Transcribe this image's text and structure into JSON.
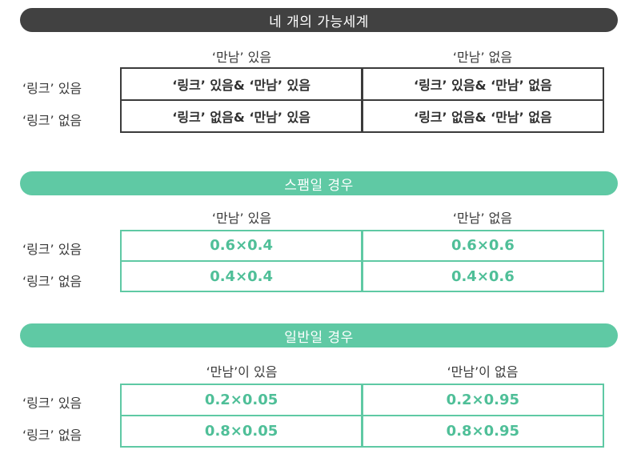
{
  "sections": [
    {
      "title": "네 개의 가능세계",
      "col_headers": [
        "‘만남’ 있음",
        "‘만남’ 없음"
      ],
      "row_headers": [
        "‘링크’ 있음",
        "‘링크’ 없음"
      ],
      "cells": [
        [
          "‘링크’ 있음& ‘만남’ 있음",
          "‘링크’ 있음& ‘만남’ 없음"
        ],
        [
          "‘링크’ 없음& ‘만남’ 있음",
          "‘링크’ 없음& ‘만남’ 없음"
        ]
      ]
    },
    {
      "title": "스팸일 경우",
      "col_headers": [
        "‘만남’ 있음",
        "‘만남’ 없음"
      ],
      "row_headers": [
        "‘링크’ 있음",
        "‘링크’ 없음"
      ],
      "cells": [
        [
          "0.6×0.4",
          "0.6×0.6"
        ],
        [
          "0.4×0.4",
          "0.4×0.6"
        ]
      ]
    },
    {
      "title": "일반일 경우",
      "col_headers": [
        "‘만남’이 있음",
        "‘만남’이 없음"
      ],
      "row_headers": [
        "‘링크’ 있음",
        "‘링크’ 없음"
      ],
      "cells": [
        [
          "0.2×0.05",
          "0.2×0.95"
        ],
        [
          "0.8×0.05",
          "0.8×0.95"
        ]
      ]
    }
  ],
  "colors": {
    "dark_banner": "#414141",
    "teal_accent": "#5fc9a4"
  }
}
